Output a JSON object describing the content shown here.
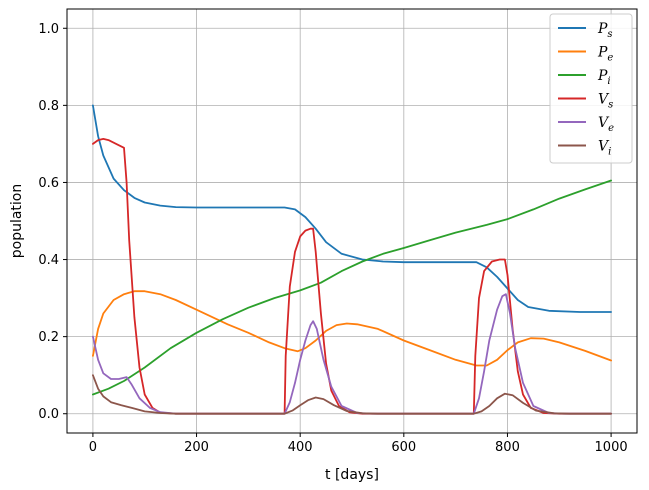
{
  "chart_data": {
    "type": "line",
    "xlabel": "t [days]",
    "ylabel": "population",
    "xlim": [
      -50,
      1050
    ],
    "ylim": [
      -0.05,
      1.05
    ],
    "xticks": [
      0,
      200,
      400,
      600,
      800,
      1000
    ],
    "yticks": [
      0.0,
      0.2,
      0.4,
      0.6,
      0.8,
      1.0
    ],
    "xtick_labels": [
      "0",
      "200",
      "400",
      "600",
      "800",
      "1000"
    ],
    "ytick_labels": [
      "0.0",
      "0.2",
      "0.4",
      "0.6",
      "0.8",
      "1.0"
    ],
    "grid": true,
    "legend_position": "top-right",
    "series": [
      {
        "name": "P_s",
        "base": "P",
        "sub": "s",
        "color": "#1f77b4",
        "points": [
          [
            0,
            0.8
          ],
          [
            10,
            0.72
          ],
          [
            20,
            0.67
          ],
          [
            40,
            0.61
          ],
          [
            60,
            0.58
          ],
          [
            80,
            0.56
          ],
          [
            100,
            0.548
          ],
          [
            130,
            0.54
          ],
          [
            160,
            0.536
          ],
          [
            200,
            0.535
          ],
          [
            300,
            0.535
          ],
          [
            370,
            0.535
          ],
          [
            390,
            0.53
          ],
          [
            410,
            0.51
          ],
          [
            430,
            0.48
          ],
          [
            450,
            0.445
          ],
          [
            480,
            0.415
          ],
          [
            520,
            0.4
          ],
          [
            560,
            0.395
          ],
          [
            600,
            0.393
          ],
          [
            700,
            0.393
          ],
          [
            740,
            0.393
          ],
          [
            760,
            0.38
          ],
          [
            780,
            0.355
          ],
          [
            800,
            0.325
          ],
          [
            820,
            0.295
          ],
          [
            840,
            0.277
          ],
          [
            880,
            0.267
          ],
          [
            940,
            0.264
          ],
          [
            1000,
            0.264
          ]
        ]
      },
      {
        "name": "P_e",
        "base": "P",
        "sub": "e",
        "color": "#ff7f0e",
        "points": [
          [
            0,
            0.15
          ],
          [
            10,
            0.22
          ],
          [
            20,
            0.26
          ],
          [
            40,
            0.295
          ],
          [
            60,
            0.31
          ],
          [
            80,
            0.318
          ],
          [
            100,
            0.318
          ],
          [
            130,
            0.31
          ],
          [
            160,
            0.295
          ],
          [
            200,
            0.27
          ],
          [
            260,
            0.232
          ],
          [
            300,
            0.21
          ],
          [
            340,
            0.185
          ],
          [
            370,
            0.17
          ],
          [
            395,
            0.162
          ],
          [
            410,
            0.17
          ],
          [
            430,
            0.19
          ],
          [
            450,
            0.215
          ],
          [
            470,
            0.23
          ],
          [
            490,
            0.234
          ],
          [
            510,
            0.232
          ],
          [
            550,
            0.22
          ],
          [
            600,
            0.19
          ],
          [
            650,
            0.165
          ],
          [
            700,
            0.14
          ],
          [
            740,
            0.125
          ],
          [
            760,
            0.125
          ],
          [
            780,
            0.14
          ],
          [
            800,
            0.165
          ],
          [
            820,
            0.185
          ],
          [
            845,
            0.196
          ],
          [
            870,
            0.195
          ],
          [
            900,
            0.185
          ],
          [
            950,
            0.163
          ],
          [
            1000,
            0.138
          ]
        ]
      },
      {
        "name": "P_i",
        "base": "P",
        "sub": "i",
        "color": "#2ca02c",
        "points": [
          [
            0,
            0.05
          ],
          [
            30,
            0.065
          ],
          [
            60,
            0.085
          ],
          [
            100,
            0.12
          ],
          [
            150,
            0.17
          ],
          [
            200,
            0.21
          ],
          [
            250,
            0.245
          ],
          [
            300,
            0.275
          ],
          [
            350,
            0.3
          ],
          [
            400,
            0.32
          ],
          [
            440,
            0.34
          ],
          [
            480,
            0.37
          ],
          [
            520,
            0.395
          ],
          [
            560,
            0.415
          ],
          [
            600,
            0.43
          ],
          [
            650,
            0.45
          ],
          [
            700,
            0.47
          ],
          [
            760,
            0.49
          ],
          [
            800,
            0.505
          ],
          [
            850,
            0.53
          ],
          [
            900,
            0.558
          ],
          [
            950,
            0.582
          ],
          [
            1000,
            0.605
          ]
        ]
      },
      {
        "name": "V_s",
        "base": "V",
        "sub": "s",
        "color": "#d62728",
        "points": [
          [
            0,
            0.7
          ],
          [
            10,
            0.71
          ],
          [
            20,
            0.713
          ],
          [
            30,
            0.71
          ],
          [
            45,
            0.7
          ],
          [
            60,
            0.69
          ],
          [
            65,
            0.6
          ],
          [
            70,
            0.45
          ],
          [
            80,
            0.25
          ],
          [
            90,
            0.12
          ],
          [
            100,
            0.05
          ],
          [
            115,
            0.015
          ],
          [
            130,
            0.003
          ],
          [
            160,
            0.0
          ],
          [
            365,
            0.0
          ],
          [
            370,
            0.0
          ],
          [
            372,
            0.15
          ],
          [
            380,
            0.33
          ],
          [
            390,
            0.42
          ],
          [
            400,
            0.46
          ],
          [
            410,
            0.475
          ],
          [
            420,
            0.48
          ],
          [
            425,
            0.48
          ],
          [
            430,
            0.42
          ],
          [
            440,
            0.26
          ],
          [
            450,
            0.13
          ],
          [
            460,
            0.06
          ],
          [
            475,
            0.02
          ],
          [
            495,
            0.004
          ],
          [
            520,
            0.0
          ],
          [
            730,
            0.0
          ],
          [
            735,
            0.0
          ],
          [
            738,
            0.15
          ],
          [
            745,
            0.3
          ],
          [
            755,
            0.37
          ],
          [
            770,
            0.395
          ],
          [
            785,
            0.4
          ],
          [
            795,
            0.4
          ],
          [
            800,
            0.36
          ],
          [
            810,
            0.22
          ],
          [
            820,
            0.11
          ],
          [
            830,
            0.05
          ],
          [
            845,
            0.015
          ],
          [
            870,
            0.002
          ],
          [
            900,
            0.0
          ],
          [
            1000,
            0.0
          ]
        ]
      },
      {
        "name": "V_e",
        "base": "V",
        "sub": "e",
        "color": "#9467bd",
        "points": [
          [
            0,
            0.2
          ],
          [
            10,
            0.14
          ],
          [
            20,
            0.105
          ],
          [
            35,
            0.09
          ],
          [
            50,
            0.09
          ],
          [
            65,
            0.095
          ],
          [
            75,
            0.075
          ],
          [
            90,
            0.04
          ],
          [
            110,
            0.015
          ],
          [
            130,
            0.004
          ],
          [
            160,
            0.0
          ],
          [
            370,
            0.0
          ],
          [
            380,
            0.03
          ],
          [
            390,
            0.08
          ],
          [
            400,
            0.14
          ],
          [
            410,
            0.19
          ],
          [
            420,
            0.23
          ],
          [
            425,
            0.24
          ],
          [
            432,
            0.22
          ],
          [
            445,
            0.14
          ],
          [
            460,
            0.07
          ],
          [
            480,
            0.02
          ],
          [
            510,
            0.002
          ],
          [
            540,
            0.0
          ],
          [
            735,
            0.0
          ],
          [
            745,
            0.04
          ],
          [
            755,
            0.11
          ],
          [
            765,
            0.19
          ],
          [
            780,
            0.27
          ],
          [
            790,
            0.305
          ],
          [
            797,
            0.31
          ],
          [
            805,
            0.26
          ],
          [
            815,
            0.17
          ],
          [
            830,
            0.08
          ],
          [
            850,
            0.02
          ],
          [
            880,
            0.002
          ],
          [
            910,
            0.0
          ],
          [
            1000,
            0.0
          ]
        ]
      },
      {
        "name": "V_i",
        "base": "V",
        "sub": "i",
        "color": "#8c564b",
        "points": [
          [
            0,
            0.1
          ],
          [
            10,
            0.065
          ],
          [
            20,
            0.045
          ],
          [
            35,
            0.03
          ],
          [
            55,
            0.022
          ],
          [
            75,
            0.015
          ],
          [
            100,
            0.006
          ],
          [
            130,
            0.002
          ],
          [
            160,
            0.0
          ],
          [
            370,
            0.0
          ],
          [
            385,
            0.008
          ],
          [
            400,
            0.022
          ],
          [
            415,
            0.035
          ],
          [
            430,
            0.042
          ],
          [
            445,
            0.038
          ],
          [
            465,
            0.022
          ],
          [
            490,
            0.007
          ],
          [
            520,
            0.001
          ],
          [
            550,
            0.0
          ],
          [
            735,
            0.0
          ],
          [
            750,
            0.006
          ],
          [
            765,
            0.02
          ],
          [
            780,
            0.04
          ],
          [
            795,
            0.052
          ],
          [
            810,
            0.048
          ],
          [
            830,
            0.028
          ],
          [
            855,
            0.008
          ],
          [
            890,
            0.001
          ],
          [
            920,
            0.0
          ],
          [
            1000,
            0.0
          ]
        ]
      }
    ]
  }
}
